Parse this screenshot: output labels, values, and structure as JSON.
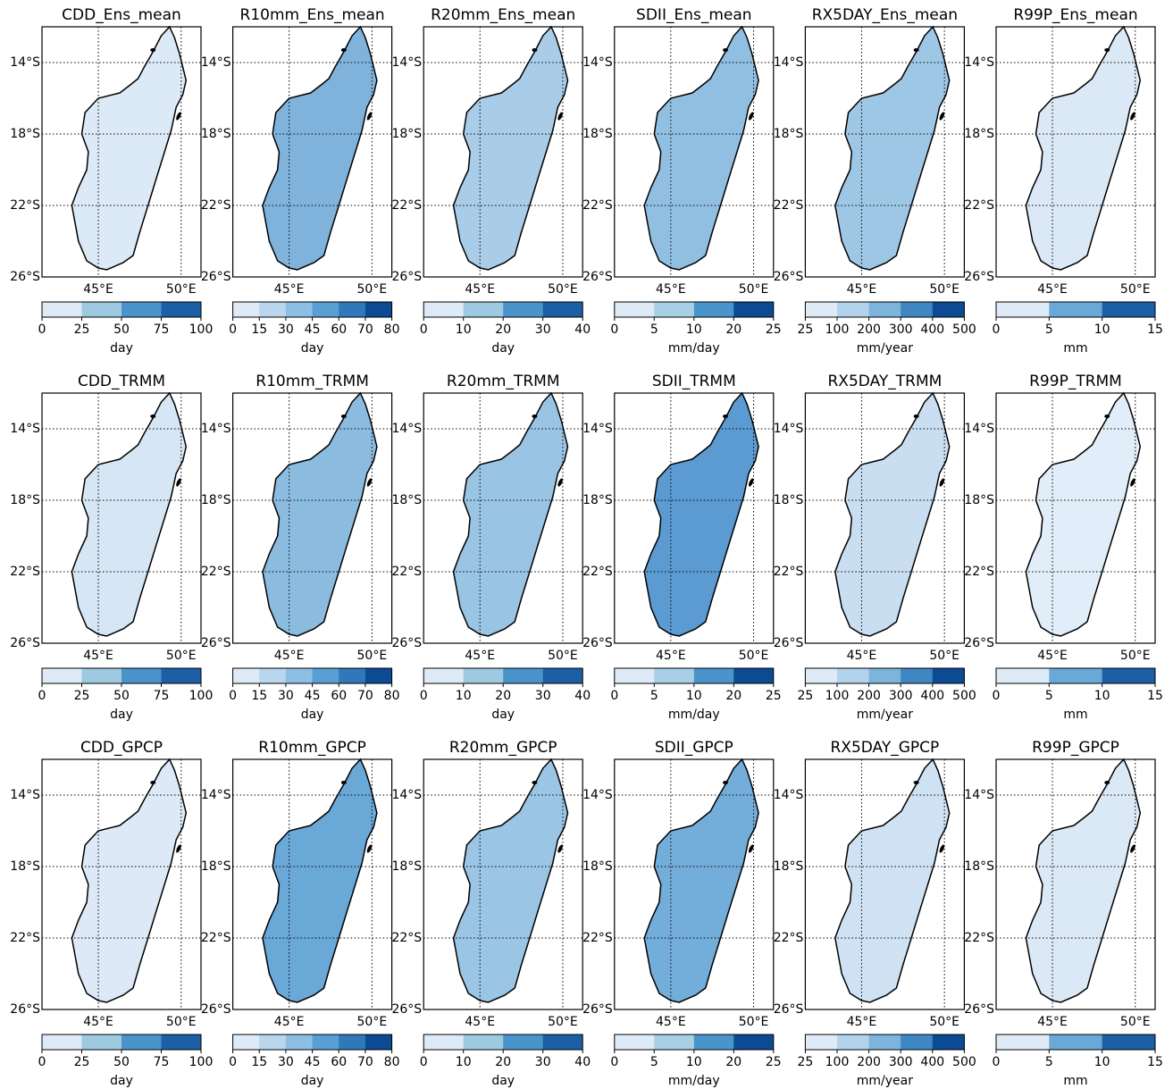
{
  "figure": {
    "xlim": [
      41.6,
      51.2
    ],
    "ylim": [
      -12,
      -26
    ],
    "lat_ticks": [
      {
        "value": -14,
        "label": "14°S"
      },
      {
        "value": -18,
        "label": "18°S"
      },
      {
        "value": -22,
        "label": "22°S"
      },
      {
        "value": -26,
        "label": "26°S"
      }
    ],
    "lon_ticks": [
      {
        "value": 45,
        "label": "45°E"
      },
      {
        "value": 50,
        "label": "50°E"
      }
    ],
    "variables": [
      {
        "ticks": [
          0,
          25,
          50,
          75,
          100
        ],
        "colors": [
          "#deebf7",
          "#9ecae1",
          "#4a94cc",
          "#1c5fa6"
        ],
        "unit": "day"
      },
      {
        "ticks": [
          0,
          15,
          30,
          45,
          60,
          70,
          80
        ],
        "colors": [
          "#deebf7",
          "#b9d6ee",
          "#8cbfe3",
          "#5a9fd3",
          "#2f79bb",
          "#0d4a94"
        ],
        "unit": "day"
      },
      {
        "ticks": [
          0,
          10,
          20,
          30,
          40
        ],
        "colors": [
          "#deebf7",
          "#9ecae1",
          "#4a94cc",
          "#1c5fa6"
        ],
        "unit": "day"
      },
      {
        "ticks": [
          0,
          5,
          10,
          20,
          25
        ],
        "colors": [
          "#deebf7",
          "#a8cfe6",
          "#4a94cc",
          "#0d4a94"
        ],
        "unit": "mm/day"
      },
      {
        "ticks": [
          25,
          100,
          200,
          300,
          400,
          500
        ],
        "colors": [
          "#deebf7",
          "#b3d3ec",
          "#7db4dc",
          "#3e87c3",
          "#0d4a94"
        ],
        "unit": "mm/year"
      },
      {
        "ticks": [
          0,
          5,
          10,
          15
        ],
        "colors": [
          "#deebf7",
          "#6aa8d8",
          "#1c5fa6"
        ],
        "unit": "mm"
      }
    ],
    "rows": [
      {
        "panels": [
          {
            "title": "CDD_Ens_mean",
            "fill": "#dce9f6"
          },
          {
            "title": "R10mm_Ens_mean",
            "fill": "#7fb3dc"
          },
          {
            "title": "R20mm_Ens_mean",
            "fill": "#a9cde9"
          },
          {
            "title": "SDII_Ens_mean",
            "fill": "#91bfe2"
          },
          {
            "title": "RX5DAY_Ens_mean",
            "fill": "#9ec7e6"
          },
          {
            "title": "R99P_Ens_mean",
            "fill": "#dbe9f6"
          }
        ]
      },
      {
        "panels": [
          {
            "title": "CDD_TRMM",
            "fill": "#d6e6f4"
          },
          {
            "title": "R10mm_TRMM",
            "fill": "#8cbbe0"
          },
          {
            "title": "R20mm_TRMM",
            "fill": "#9ac4e4"
          },
          {
            "title": "SDII_TRMM",
            "fill": "#5b9bd1"
          },
          {
            "title": "RX5DAY_TRMM",
            "fill": "#c9dff1"
          },
          {
            "title": "R99P_TRMM",
            "fill": "#e1edf8"
          }
        ]
      },
      {
        "panels": [
          {
            "title": "CDD_GPCP",
            "fill": "#dde9f6"
          },
          {
            "title": "R10mm_GPCP",
            "fill": "#6aa8d8"
          },
          {
            "title": "R20mm_GPCP",
            "fill": "#9bc5e5"
          },
          {
            "title": "SDII_GPCP",
            "fill": "#73add9"
          },
          {
            "title": "RX5DAY_GPCP",
            "fill": "#cfe2f3"
          },
          {
            "title": "R99P_GPCP",
            "fill": "#dbe8f5"
          }
        ]
      }
    ]
  }
}
